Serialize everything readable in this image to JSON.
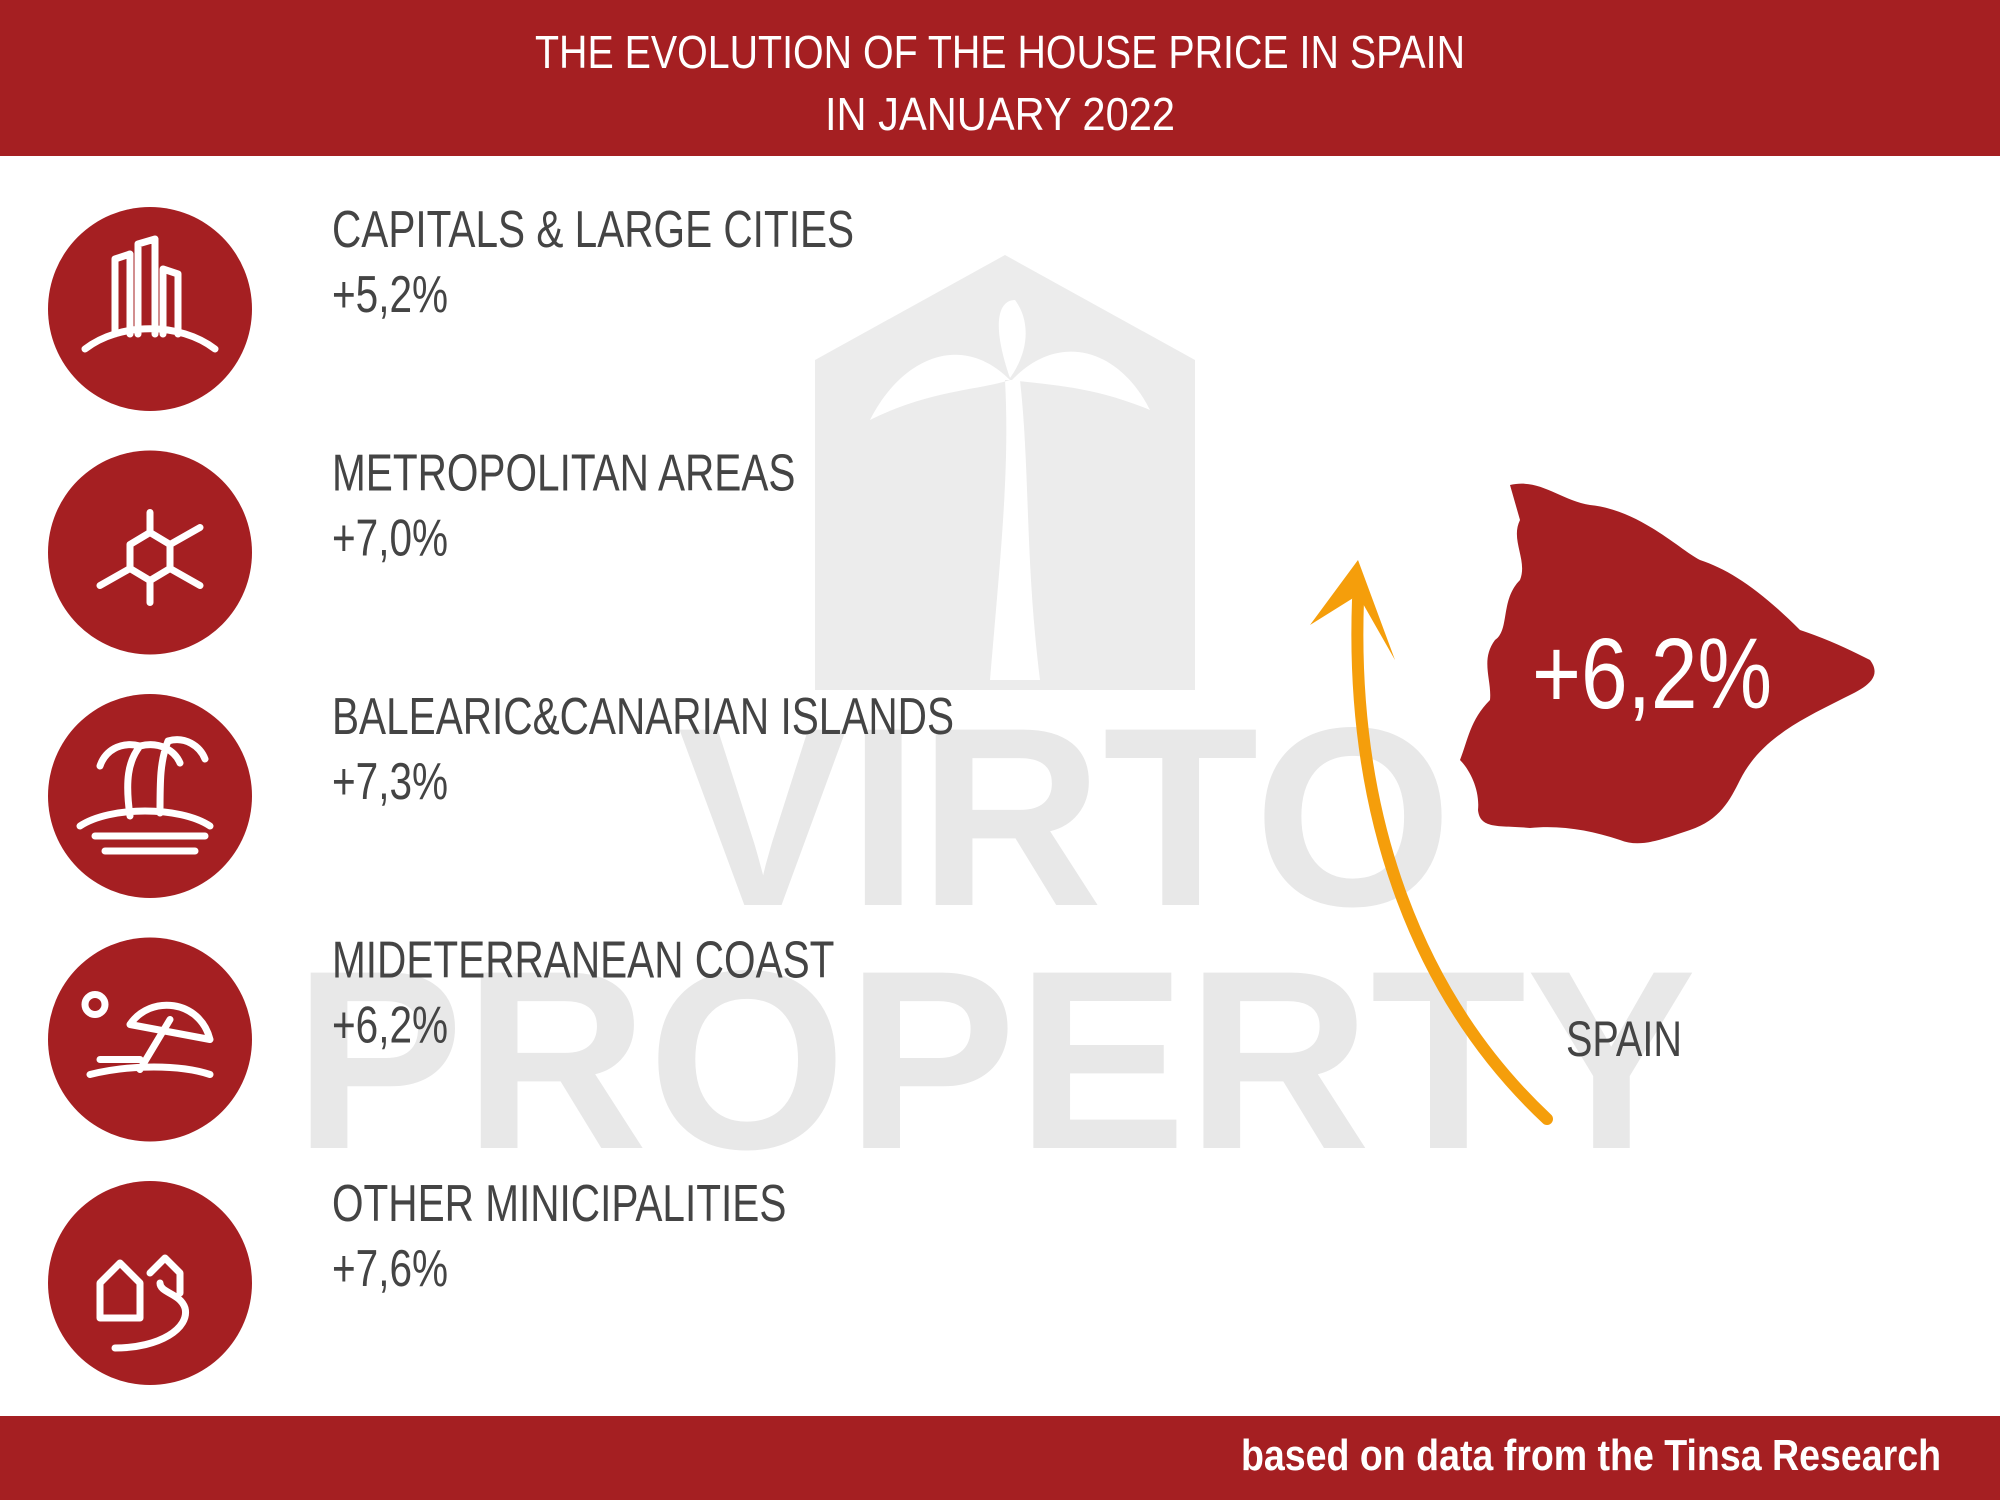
{
  "header": {
    "title": [
      "THE EVOLUTION OF THE HOUSE PRICE IN SPAIN",
      "IN JANUARY 2022"
    ]
  },
  "items": [
    {
      "label": "CAPITALS & LARGE CITIES",
      "value": "+5,2%"
    },
    {
      "label": "METROPOLITAN AREAS",
      "value": "+7,0%"
    },
    {
      "label": "BALEARIC&CANARIAN ISLANDS",
      "value": "+7,3%"
    },
    {
      "label": "MIDETERRANEAN COAST",
      "value": "+6,2%"
    },
    {
      "label": "OTHER MINICIPALITIES",
      "value": "+7,6%"
    }
  ],
  "spain": {
    "label": "SPAIN",
    "value": "+6,2%"
  },
  "watermark": [
    "VIRTO",
    "PROPERTY"
  ],
  "footer": "based on data from the Tinsa Research"
}
